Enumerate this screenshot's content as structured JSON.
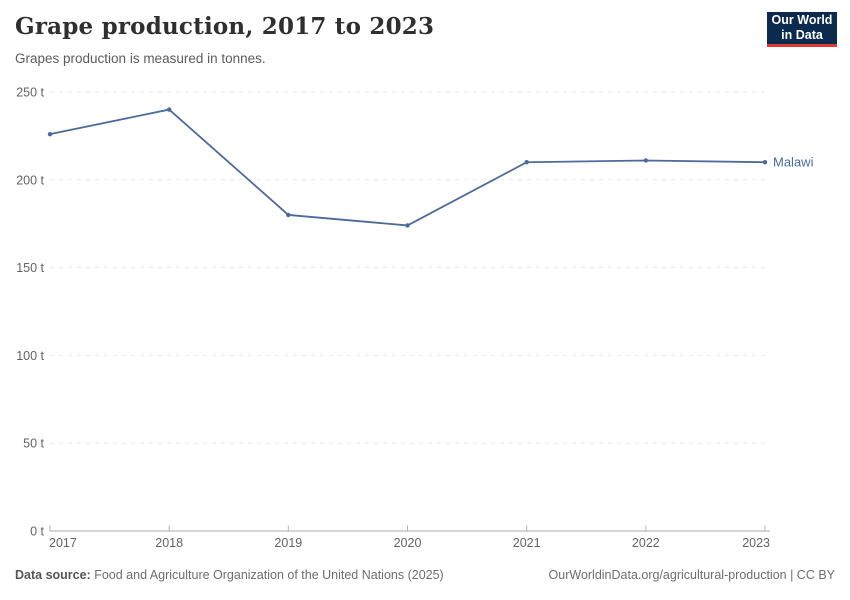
{
  "header": {
    "logo": {
      "line1": "Our World",
      "line2": "in Data",
      "bg_color": "#0b2a4d",
      "accent_color": "#dc3a32"
    }
  },
  "chart_data": {
    "type": "line",
    "title": "Grape production, 2017 to 2023",
    "subtitle": "Grapes production is measured in tonnes.",
    "xlabel": "",
    "ylabel": "tonnes",
    "x": [
      2017,
      2018,
      2019,
      2020,
      2021,
      2022,
      2023
    ],
    "series": [
      {
        "name": "Malawi",
        "color": "#4c6a9c",
        "values": [
          226,
          240,
          180,
          174,
          210,
          211,
          210
        ]
      }
    ],
    "ylim": [
      0,
      250
    ],
    "y_ticks": [
      {
        "value": 250,
        "label": "250 t"
      },
      {
        "value": 200,
        "label": "200 t"
      },
      {
        "value": 150,
        "label": "150 t"
      },
      {
        "value": 100,
        "label": "100 t"
      },
      {
        "value": 50,
        "label": "50 t"
      },
      {
        "value": 0,
        "label": "0 t"
      }
    ],
    "grid": true,
    "gridline_color": "#e7e7e7",
    "axis_color": "#a8a8a8",
    "legend_position": "end-of-line"
  },
  "footer": {
    "data_source_label": "Data source:",
    "data_source_text": " Food and Agriculture Organization of the United Nations (2025)",
    "attribution": "OurWorldinData.org/agricultural-production | CC BY"
  }
}
